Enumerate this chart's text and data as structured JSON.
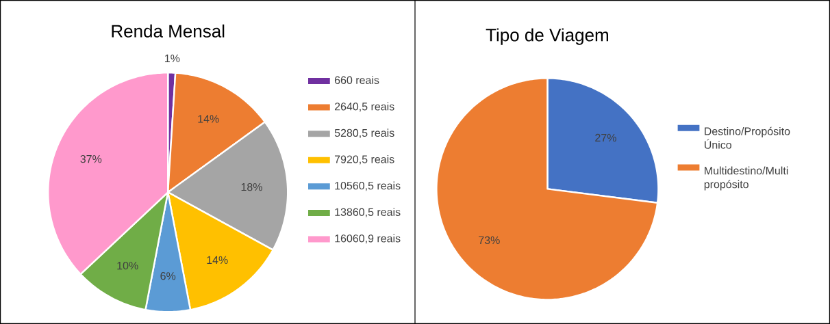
{
  "chart_data": [
    {
      "type": "pie",
      "title": "Renda Mensal",
      "categories": [
        "660 reais",
        "2640,5 reais",
        "5280,5 reais",
        "7920,5 reais",
        "10560,5 reais",
        "13860,5 reais",
        "16060,9 reais"
      ],
      "values": [
        1,
        14,
        18,
        14,
        6,
        10,
        37
      ],
      "value_labels": [
        "1%",
        "14%",
        "18%",
        "14%",
        "6%",
        "10%",
        "37%"
      ],
      "colors": [
        "#7030a0",
        "#ed7d31",
        "#a5a5a5",
        "#ffc000",
        "#5b9bd5",
        "#70ad47",
        "#ff99cc"
      ],
      "legend": "right"
    },
    {
      "type": "pie",
      "title": "Tipo de Viagem",
      "categories": [
        "Destino/Propósito Único",
        "Multidestino/Multi propósito"
      ],
      "values": [
        27,
        73
      ],
      "value_labels": [
        "27%",
        "73%"
      ],
      "colors": [
        "#4472c4",
        "#ed7d31"
      ],
      "legend": "right"
    }
  ]
}
